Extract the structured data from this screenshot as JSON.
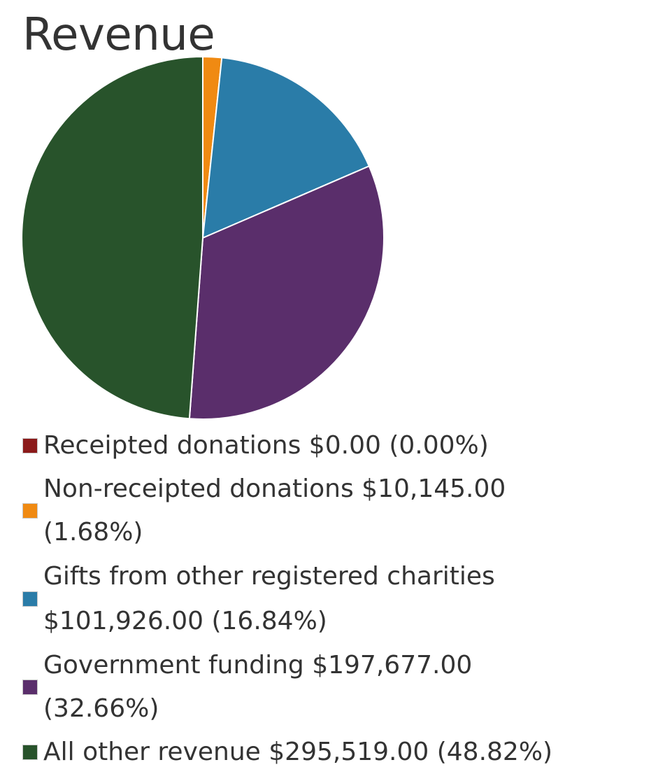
{
  "chart_data": {
    "type": "pie",
    "title": "Revenue",
    "legend_position": "bottom",
    "slices": [
      {
        "label": "Receipted donations $0.00 (0.00%)",
        "value": 0.0,
        "percent": 0.0,
        "color": "#8b1a1a"
      },
      {
        "label": "Non-receipted donations $10,145.00 (1.68%)",
        "value": 10145.0,
        "percent": 1.68,
        "color": "#f08a12"
      },
      {
        "label": "Gifts from other registered charities $101,926.00 (16.84%)",
        "value": 101926.0,
        "percent": 16.84,
        "color": "#2a7ca8"
      },
      {
        "label": "Government funding $197,677.00 (32.66%)",
        "value": 197677.0,
        "percent": 32.66,
        "color": "#5a2e6b"
      },
      {
        "label": "All other revenue $295,519.00 (48.82%)",
        "value": 295519.0,
        "percent": 48.82,
        "color": "#28532b"
      }
    ]
  }
}
